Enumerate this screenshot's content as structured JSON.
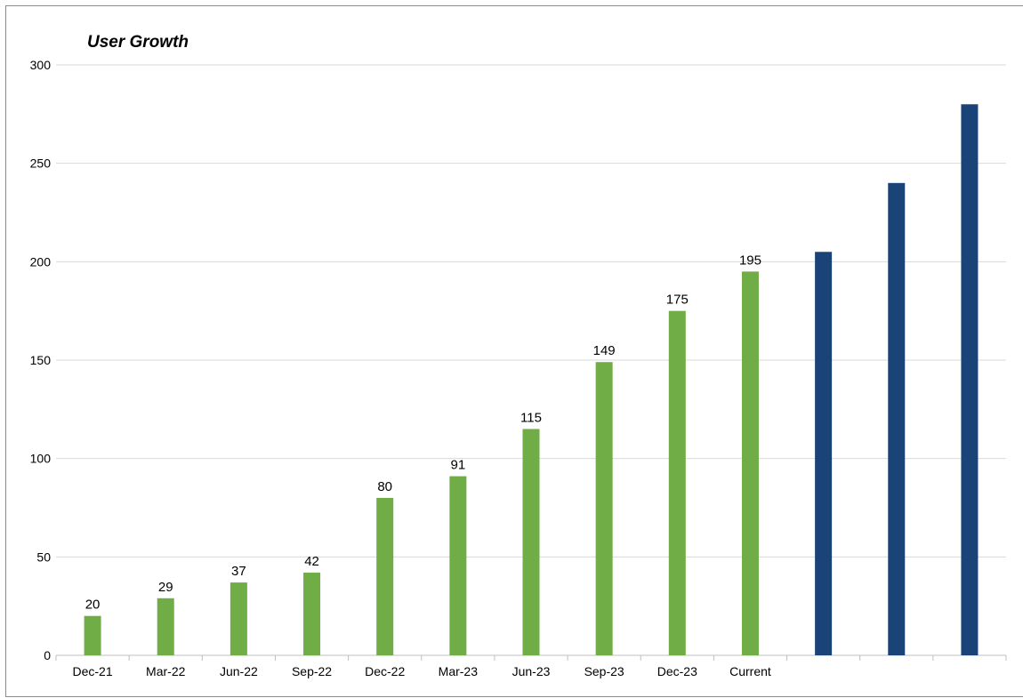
{
  "chart_data": {
    "type": "bar",
    "title": "User Growth",
    "xlabel": "",
    "ylabel": "",
    "ylim": [
      0,
      300
    ],
    "yticks": [
      0,
      50,
      100,
      150,
      200,
      250,
      300
    ],
    "grid": true,
    "legend": "none",
    "categories": [
      "Dec-21",
      "Mar-22",
      "Jun-22",
      "Sep-22",
      "Dec-22",
      "Mar-23",
      "Jun-23",
      "Sep-23",
      "Dec-23",
      "Current",
      "",
      "",
      ""
    ],
    "series": [
      {
        "values": [
          20,
          29,
          37,
          42,
          80,
          91,
          115,
          149,
          175,
          195,
          null,
          null,
          null
        ],
        "color": "#70ad47",
        "data_labels": [
          "20",
          "29",
          "37",
          "42",
          "80",
          "91",
          "115",
          "149",
          "175",
          "195",
          "",
          "",
          ""
        ]
      },
      {
        "values": [
          null,
          null,
          null,
          null,
          null,
          null,
          null,
          null,
          null,
          null,
          205,
          240,
          280
        ],
        "color": "#1a4478",
        "data_labels": [
          "",
          "",
          "",
          "",
          "",
          "",
          "",
          "",
          "",
          "",
          "",
          "",
          ""
        ]
      }
    ]
  }
}
